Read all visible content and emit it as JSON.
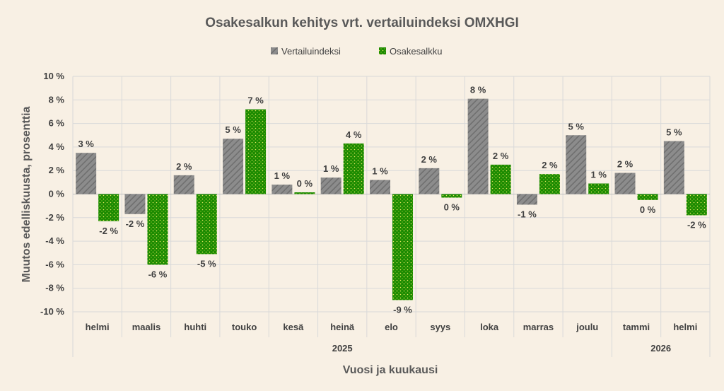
{
  "chart_data": {
    "type": "bar",
    "title": "Osakesalkun kehitys vrt. vertailuindeksi OMXHGI",
    "xlabel": "Vuosi ja kuukausi",
    "ylabel": "Muutos edelliskuusta, prosenttia",
    "ylim": [
      -10,
      10
    ],
    "yticks": [
      "10 %",
      "8 %",
      "6 %",
      "4 %",
      "2 %",
      "0 %",
      "-2 %",
      "-4 %",
      "-6 %",
      "-8 %",
      "-10 %"
    ],
    "grid": true,
    "legend_position": "top",
    "categories": [
      "helmi",
      "maalis",
      "huhti",
      "touko",
      "kesä",
      "heinä",
      "elo",
      "syys",
      "loka",
      "marras",
      "joulu",
      "tammi",
      "helmi"
    ],
    "years": [
      {
        "label": "2025",
        "count": 11
      },
      {
        "label": "2026",
        "count": 2
      }
    ],
    "series": [
      {
        "name": "Vertailuindeksi",
        "color": "#7f7f7f",
        "values": [
          3.5,
          -1.7,
          1.6,
          4.7,
          0.8,
          1.4,
          1.2,
          2.2,
          8.1,
          -0.9,
          5.0,
          1.8,
          4.5
        ],
        "labels": [
          "3 %",
          "-2 %",
          "2 %",
          "5 %",
          "1 %",
          "1 %",
          "1 %",
          "2 %",
          "8 %",
          "-1 %",
          "5 %",
          "2 %",
          "5 %"
        ]
      },
      {
        "name": "Osakesalkku",
        "color": "#1a8a00",
        "values": [
          -2.3,
          -6.0,
          -5.1,
          7.2,
          0.15,
          4.3,
          -9.0,
          -0.3,
          2.5,
          1.7,
          0.9,
          -0.5,
          -1.8
        ],
        "labels": [
          "-2 %",
          "-6 %",
          "-5 %",
          "7 %",
          "0 %",
          "4 %",
          "-9 %",
          "0 %",
          "2 %",
          "2 %",
          "1 %",
          "0 %",
          "-2 %"
        ]
      }
    ]
  }
}
